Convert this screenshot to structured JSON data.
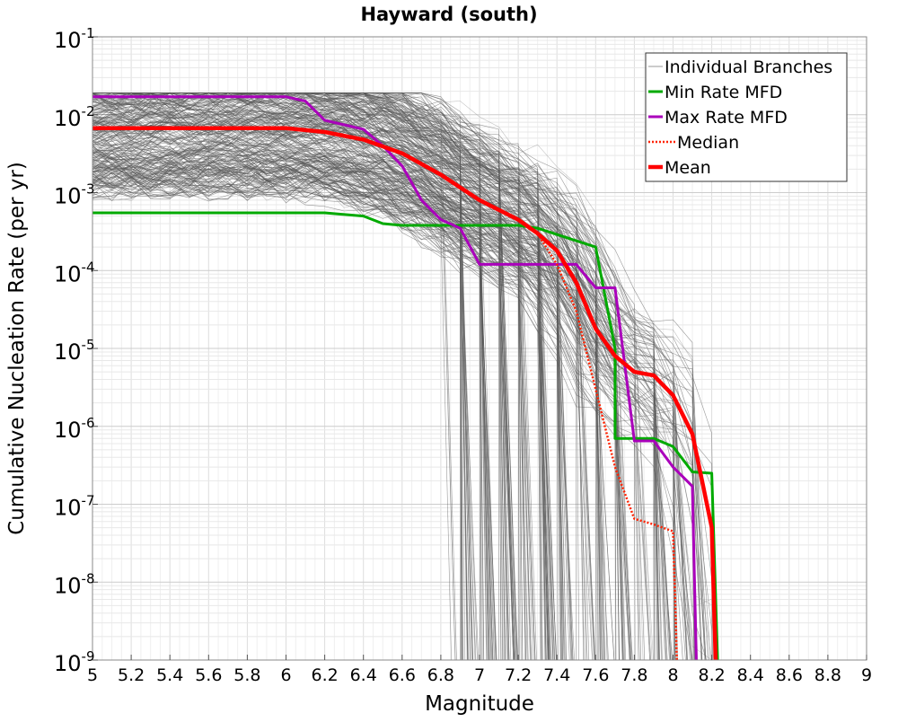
{
  "chart_data": {
    "type": "line",
    "title": "Hayward (south)",
    "xlabel": "Magnitude",
    "ylabel": "Cumulative Nucleation Rate (per yr)",
    "y_scale": "log",
    "xlim": [
      5,
      9
    ],
    "ylim": [
      1e-09,
      0.1
    ],
    "grid": true,
    "legend_position": "top-right",
    "x_tick_labels": [
      "5",
      "5.2",
      "5.4",
      "5.6",
      "5.8",
      "6",
      "6.2",
      "6.4",
      "6.6",
      "6.8",
      "7",
      "7.2",
      "7.4",
      "7.6",
      "7.8",
      "8",
      "8.2",
      "8.4",
      "8.6",
      "8.8",
      "9"
    ],
    "y_ticks": [
      {
        "base": "10",
        "exp": "-1"
      },
      {
        "base": "10",
        "exp": "-2"
      },
      {
        "base": "10",
        "exp": "-3"
      },
      {
        "base": "10",
        "exp": "-4"
      },
      {
        "base": "10",
        "exp": "-5"
      },
      {
        "base": "10",
        "exp": "-6"
      },
      {
        "base": "10",
        "exp": "-7"
      },
      {
        "base": "10",
        "exp": "-8"
      },
      {
        "base": "10",
        "exp": "-9"
      }
    ],
    "branch_count": 300,
    "series": [
      {
        "name": "Individual Branches",
        "color": "#555555",
        "style": "thin",
        "x": [],
        "y": []
      },
      {
        "name": "Min Rate MFD",
        "color": "#00aa00",
        "style": "solid",
        "x": [
          5.0,
          6.2,
          6.4,
          6.5,
          6.6,
          7.0,
          7.2,
          7.3,
          7.6,
          7.7,
          7.7,
          7.9,
          8.0,
          8.1,
          8.2,
          8.23
        ],
        "y": [
          0.00055,
          0.00055,
          0.0005,
          0.0004,
          0.00038,
          0.00038,
          0.00038,
          0.00035,
          0.0002,
          1e-05,
          7e-07,
          7e-07,
          5.5e-07,
          2.6e-07,
          2.5e-07,
          1e-09
        ]
      },
      {
        "name": "Max Rate MFD",
        "color": "#aa00bb",
        "style": "solid",
        "x": [
          5.0,
          6.0,
          6.1,
          6.2,
          6.4,
          6.5,
          6.6,
          6.7,
          6.8,
          6.9,
          7.0,
          7.5,
          7.6,
          7.7,
          7.8,
          7.9,
          8.0,
          8.1,
          8.12
        ],
        "y": [
          0.017,
          0.017,
          0.015,
          0.0085,
          0.0065,
          0.004,
          0.0022,
          0.0008,
          0.00045,
          0.00035,
          0.00012,
          0.00012,
          6e-05,
          6e-05,
          6.5e-07,
          6.5e-07,
          3e-07,
          1.7e-07,
          1e-09
        ]
      },
      {
        "name": "Median",
        "color": "#ff2200",
        "style": "dotted",
        "x": [
          5.0,
          6.0,
          6.2,
          6.4,
          6.6,
          6.8,
          7.0,
          7.2,
          7.3,
          7.4,
          7.5,
          7.6,
          7.7,
          7.8,
          7.9,
          8.0,
          8.02
        ],
        "y": [
          0.0067,
          0.0067,
          0.006,
          0.0048,
          0.0032,
          0.0017,
          0.0008,
          0.00045,
          0.0003,
          0.00012,
          3e-05,
          3e-06,
          3e-07,
          6.5e-08,
          5.5e-08,
          4.5e-08,
          1e-09
        ]
      },
      {
        "name": "Mean",
        "color": "#ff0000",
        "style": "thick",
        "x": [
          5.0,
          6.0,
          6.2,
          6.4,
          6.6,
          6.8,
          7.0,
          7.2,
          7.3,
          7.4,
          7.5,
          7.6,
          7.7,
          7.8,
          7.9,
          8.0,
          8.1,
          8.2,
          8.22
        ],
        "y": [
          0.0067,
          0.0067,
          0.006,
          0.0048,
          0.0032,
          0.0017,
          0.0008,
          0.00045,
          0.0003,
          0.00018,
          7e-05,
          1.8e-05,
          8e-06,
          5e-06,
          4.5e-06,
          2.5e-06,
          8e-07,
          5e-08,
          1e-09
        ]
      }
    ]
  }
}
